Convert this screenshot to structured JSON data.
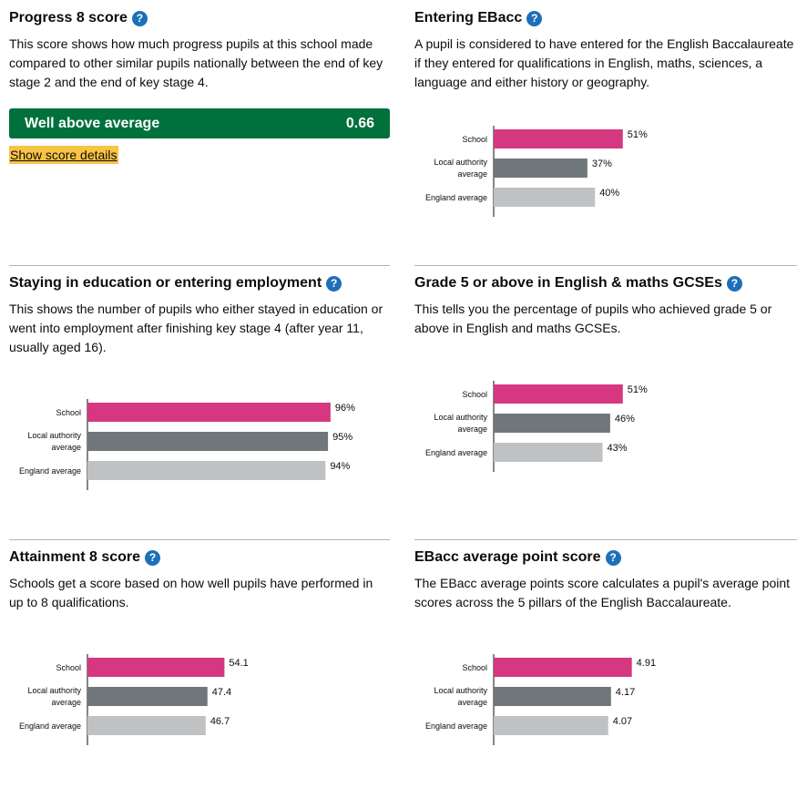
{
  "help_glyph": "?",
  "colors": {
    "school": "#d53880",
    "local": "#6f777b",
    "england": "#bfc1c3",
    "score_bg": "#00703c",
    "help": "#1d70b8",
    "highlight": "#f8c444"
  },
  "progress8": {
    "title": "Progress 8 score",
    "description": "This score shows how much progress pupils at this school made compared to other similar pupils nationally between the end of key stage 2 and the end of key stage 4.",
    "band": "Well above average",
    "value": "0.66",
    "details_link": "Show score details"
  },
  "panels": [
    {
      "title": "Entering EBacc",
      "description": "A pupil is considered to have entered for the English Baccalaureate if they entered for qualifications in English, maths, sciences, a language and either history or geography."
    },
    {
      "title": "Staying in education or entering employment",
      "description": "This shows the number of pupils who either stayed in education or went into employment after finishing key stage 4 (after year 11, usually aged 16)."
    },
    {
      "title": "Grade 5 or above in English & maths GCSEs",
      "description": "This tells you the percentage of pupils who achieved grade 5 or above in English and maths GCSEs."
    },
    {
      "title": "Attainment 8 score",
      "description": "Schools get a score based on how well pupils have performed in up to 8 qualifications."
    },
    {
      "title": "EBacc average point score",
      "description": "The EBacc average points score calculates a pupil's average point scores across the 5 pillars of the English Baccalaureate."
    }
  ],
  "chart_data": [
    {
      "type": "bar",
      "orientation": "horizontal",
      "categories": [
        [
          "School"
        ],
        [
          "Local authority",
          "average"
        ],
        [
          "England average"
        ]
      ],
      "values": [
        51,
        37,
        40
      ],
      "labels": [
        "51%",
        "37%",
        "40%"
      ],
      "xlim": [
        0,
        100
      ]
    },
    {
      "type": "bar",
      "orientation": "horizontal",
      "categories": [
        [
          "School"
        ],
        [
          "Local authority",
          "average"
        ],
        [
          "England average"
        ]
      ],
      "values": [
        96,
        95,
        94
      ],
      "labels": [
        "96%",
        "95%",
        "94%"
      ],
      "xlim": [
        0,
        100
      ]
    },
    {
      "type": "bar",
      "orientation": "horizontal",
      "categories": [
        [
          "School"
        ],
        [
          "Local authority",
          "average"
        ],
        [
          "England average"
        ]
      ],
      "values": [
        51,
        46,
        43
      ],
      "labels": [
        "51%",
        "46%",
        "43%"
      ],
      "xlim": [
        0,
        100
      ]
    },
    {
      "type": "bar",
      "orientation": "horizontal",
      "categories": [
        [
          "School"
        ],
        [
          "Local authority",
          "average"
        ],
        [
          "England average"
        ]
      ],
      "values": [
        54.1,
        47.4,
        46.7
      ],
      "labels": [
        "54.1",
        "47.4",
        "46.7"
      ],
      "xlim": [
        0,
        100
      ]
    },
    {
      "type": "bar",
      "orientation": "horizontal",
      "categories": [
        [
          "School"
        ],
        [
          "Local authority",
          "average"
        ],
        [
          "England average"
        ]
      ],
      "values": [
        4.91,
        4.17,
        4.07
      ],
      "labels": [
        "4.91",
        "4.17",
        "4.07"
      ],
      "xlim": [
        0,
        9
      ]
    }
  ]
}
